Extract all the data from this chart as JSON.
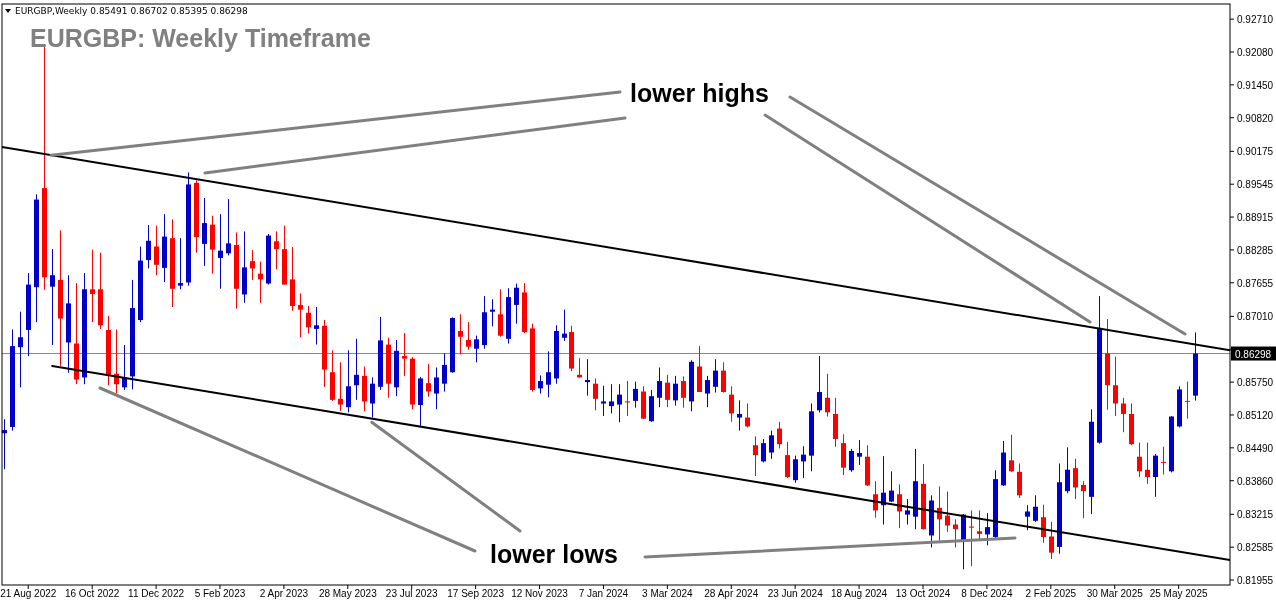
{
  "chart_data": {
    "type": "candlestick",
    "title": "EURGBP: Weekly Timeframe",
    "subtitle": "EURGBP,Weekly  0.85491 0.86702 0.85395 0.86298",
    "annotations": [
      {
        "text": "lower highs",
        "x": "2022-09-10",
        "y": 0.901
      },
      {
        "text": "lower lows",
        "x": "2023-06-18",
        "y": 0.8498
      }
    ],
    "xlim": [
      "2022-07-29",
      "2025-07-09"
    ],
    "ylim": [
      0.8186,
      0.93
    ],
    "xticks": [
      {
        "value": "2022-08-21",
        "label": "21 Aug 2022"
      },
      {
        "value": "2022-10-16",
        "label": "16 Oct 2022"
      },
      {
        "value": "2022-12-11",
        "label": "11 Dec 2022"
      },
      {
        "value": "2023-02-05",
        "label": "5 Feb 2023"
      },
      {
        "value": "2023-04-02",
        "label": "2 Apr 2023"
      },
      {
        "value": "2023-05-28",
        "label": "28 May 2023"
      },
      {
        "value": "2023-07-23",
        "label": "23 Jul 2023"
      },
      {
        "value": "2023-09-17",
        "label": "17 Sep 2023"
      },
      {
        "value": "2023-11-12",
        "label": "12 Nov 2023"
      },
      {
        "value": "2024-01-07",
        "label": "7 Jan 2024"
      },
      {
        "value": "2024-03-03",
        "label": "3 Mar 2024"
      },
      {
        "value": "2024-04-28",
        "label": "28 Apr 2024"
      },
      {
        "value": "2024-06-23",
        "label": "23 Jun 2024"
      },
      {
        "value": "2024-08-18",
        "label": "18 Aug 2024"
      },
      {
        "value": "2024-10-13",
        "label": "13 Oct 2024"
      },
      {
        "value": "2024-12-08",
        "label": "8 Dec 2024"
      },
      {
        "value": "2025-02-02",
        "label": "2 Feb 2025"
      },
      {
        "value": "2025-03-30",
        "label": "30 Mar 2025"
      },
      {
        "value": "2025-05-25",
        "label": "25 May 2025"
      }
    ],
    "yticks": [
      {
        "value": 0.9271,
        "label": "0.92710"
      },
      {
        "value": 0.9208,
        "label": "0.92080"
      },
      {
        "value": 0.9145,
        "label": "0.91450"
      },
      {
        "value": 0.9082,
        "label": "0.90820"
      },
      {
        "value": 0.90175,
        "label": "0.90175"
      },
      {
        "value": 0.89545,
        "label": "0.89545"
      },
      {
        "value": 0.88915,
        "label": "0.88915"
      },
      {
        "value": 0.88285,
        "label": "0.88285"
      },
      {
        "value": 0.87655,
        "label": "0.87655"
      },
      {
        "value": 0.8701,
        "label": "0.87010"
      },
      {
        "value": 0.8638,
        "label": null
      },
      {
        "value": 0.8575,
        "label": "0.85750"
      },
      {
        "value": 0.8512,
        "label": "0.85120"
      },
      {
        "value": 0.8449,
        "label": "0.84490"
      },
      {
        "value": 0.8386,
        "label": "0.83860"
      },
      {
        "value": 0.83215,
        "label": "0.83215"
      },
      {
        "value": 0.82585,
        "label": "0.82585"
      },
      {
        "value": 0.81955,
        "label": "0.81955"
      }
    ],
    "ref_lines": [
      {
        "axis": "y",
        "value": 0.86298,
        "label": "0.86298",
        "color": "#778899"
      }
    ],
    "series": [
      {
        "x": [
          "2022-07-31",
          "2022-08-07",
          "2022-08-14",
          "2022-08-21",
          "2022-08-28",
          "2022-09-04",
          "2022-09-11",
          "2022-09-18",
          "2022-09-25",
          "2022-10-02",
          "2022-10-09",
          "2022-10-16",
          "2022-10-23",
          "2022-10-30",
          "2022-11-06",
          "2022-11-13",
          "2022-11-20",
          "2022-11-27",
          "2022-12-04",
          "2022-12-11",
          "2022-12-18",
          "2022-12-25",
          "2023-01-01",
          "2023-01-08",
          "2023-01-15",
          "2023-01-22",
          "2023-01-29",
          "2023-02-05",
          "2023-02-12",
          "2023-02-19",
          "2023-02-26",
          "2023-03-05",
          "2023-03-12",
          "2023-03-19",
          "2023-03-26",
          "2023-04-02",
          "2023-04-09",
          "2023-04-16",
          "2023-04-23",
          "2023-04-30",
          "2023-05-07",
          "2023-05-14",
          "2023-05-21",
          "2023-05-28",
          "2023-06-04",
          "2023-06-11",
          "2023-06-18",
          "2023-06-25",
          "2023-07-02",
          "2023-07-09",
          "2023-07-16",
          "2023-07-23",
          "2023-07-30",
          "2023-08-06",
          "2023-08-13",
          "2023-08-20",
          "2023-08-27",
          "2023-09-03",
          "2023-09-10",
          "2023-09-17",
          "2023-09-24",
          "2023-10-01",
          "2023-10-08",
          "2023-10-15",
          "2023-10-22",
          "2023-10-29",
          "2023-11-05",
          "2023-11-12",
          "2023-11-19",
          "2023-11-26",
          "2023-12-03",
          "2023-12-10",
          "2023-12-17",
          "2023-12-24",
          "2023-12-31",
          "2024-01-07",
          "2024-01-14",
          "2024-01-21",
          "2024-01-28",
          "2024-02-04",
          "2024-02-11",
          "2024-02-18",
          "2024-02-25",
          "2024-03-03",
          "2024-03-10",
          "2024-03-17",
          "2024-03-24",
          "2024-03-31",
          "2024-04-07",
          "2024-04-14",
          "2024-04-21",
          "2024-04-28",
          "2024-05-05",
          "2024-05-12",
          "2024-05-19",
          "2024-05-26",
          "2024-06-02",
          "2024-06-09",
          "2024-06-16",
          "2024-06-23",
          "2024-06-30",
          "2024-07-07",
          "2024-07-14",
          "2024-07-21",
          "2024-07-28",
          "2024-08-04",
          "2024-08-11",
          "2024-08-18",
          "2024-08-25",
          "2024-09-01",
          "2024-09-08",
          "2024-09-15",
          "2024-09-22",
          "2024-09-29",
          "2024-10-06",
          "2024-10-13",
          "2024-10-20",
          "2024-10-27",
          "2024-11-03",
          "2024-11-10",
          "2024-11-17",
          "2024-11-24",
          "2024-12-01",
          "2024-12-08",
          "2024-12-15",
          "2024-12-22",
          "2024-12-29",
          "2025-01-05",
          "2025-01-12",
          "2025-01-19",
          "2025-01-26",
          "2025-02-02",
          "2025-02-09",
          "2025-02-16",
          "2025-02-23",
          "2025-03-02",
          "2025-03-09",
          "2025-03-16",
          "2025-03-23",
          "2025-03-30",
          "2025-04-06",
          "2025-04-13",
          "2025-04-20",
          "2025-04-27",
          "2025-05-04",
          "2025-05-11",
          "2025-05-18",
          "2025-05-25",
          "2025-06-01",
          "2025-06-08"
        ],
        "ohlc": [
          [
            0.8477,
            0.8504,
            0.8408,
            0.8483
          ],
          [
            0.8489,
            0.8676,
            0.8482,
            0.8644
          ],
          [
            0.8642,
            0.871,
            0.8565,
            0.8661
          ],
          [
            0.8675,
            0.8784,
            0.8625,
            0.8762
          ],
          [
            0.8757,
            0.8935,
            0.869,
            0.8925
          ],
          [
            0.8947,
            0.9221,
            0.8752,
            0.8776
          ],
          [
            0.8758,
            0.883,
            0.8646,
            0.878
          ],
          [
            0.8771,
            0.8866,
            0.8606,
            0.8697
          ],
          [
            0.8651,
            0.878,
            0.8593,
            0.8726
          ],
          [
            0.8649,
            0.8765,
            0.8571,
            0.858
          ],
          [
            0.8584,
            0.8784,
            0.8571,
            0.8753
          ],
          [
            0.8753,
            0.8829,
            0.869,
            0.8744
          ],
          [
            0.8753,
            0.8823,
            0.8677,
            0.8684
          ],
          [
            0.8675,
            0.8702,
            0.8569,
            0.8589
          ],
          [
            0.8591,
            0.8676,
            0.8553,
            0.8571
          ],
          [
            0.8565,
            0.8646,
            0.856,
            0.8584
          ],
          [
            0.8586,
            0.8771,
            0.8561,
            0.8717
          ],
          [
            0.8694,
            0.8835,
            0.869,
            0.8808
          ],
          [
            0.8809,
            0.8876,
            0.8793,
            0.8846
          ],
          [
            0.8835,
            0.8875,
            0.878,
            0.88
          ],
          [
            0.8794,
            0.8897,
            0.8767,
            0.8854
          ],
          [
            0.8851,
            0.8887,
            0.8719,
            0.8754
          ],
          [
            0.876,
            0.8851,
            0.8753,
            0.8765
          ],
          [
            0.8766,
            0.8977,
            0.876,
            0.8954
          ],
          [
            0.8957,
            0.8962,
            0.8823,
            0.8853
          ],
          [
            0.884,
            0.8928,
            0.8798,
            0.888
          ],
          [
            0.8877,
            0.8894,
            0.8783,
            0.8829
          ],
          [
            0.8813,
            0.8897,
            0.8754,
            0.8827
          ],
          [
            0.8822,
            0.8926,
            0.8818,
            0.8841
          ],
          [
            0.8838,
            0.8862,
            0.8716,
            0.8754
          ],
          [
            0.8743,
            0.8864,
            0.8727,
            0.8795
          ],
          [
            0.8807,
            0.8828,
            0.8771,
            0.8793
          ],
          [
            0.8783,
            0.8806,
            0.8727,
            0.8772
          ],
          [
            0.8764,
            0.8859,
            0.8762,
            0.8856
          ],
          [
            0.8845,
            0.8864,
            0.8791,
            0.883
          ],
          [
            0.883,
            0.8875,
            0.8762,
            0.8762
          ],
          [
            0.8772,
            0.8834,
            0.8712,
            0.8721
          ],
          [
            0.8723,
            0.8745,
            0.8661,
            0.8714
          ],
          [
            0.8708,
            0.8721,
            0.8668,
            0.868
          ],
          [
            0.8677,
            0.8719,
            0.8647,
            0.8684
          ],
          [
            0.8683,
            0.8694,
            0.8566,
            0.8599
          ],
          [
            0.8594,
            0.8636,
            0.8539,
            0.8541
          ],
          [
            0.8543,
            0.8613,
            0.852,
            0.8532
          ],
          [
            0.8527,
            0.8636,
            0.8517,
            0.8567
          ],
          [
            0.8569,
            0.8658,
            0.8541,
            0.8589
          ],
          [
            0.8587,
            0.8605,
            0.8519,
            0.8538
          ],
          [
            0.8534,
            0.8584,
            0.8507,
            0.8572
          ],
          [
            0.8566,
            0.87,
            0.856,
            0.8655
          ],
          [
            0.8647,
            0.866,
            0.8545,
            0.8572
          ],
          [
            0.8565,
            0.8656,
            0.8548,
            0.8635
          ],
          [
            0.8625,
            0.8669,
            0.8587,
            0.862
          ],
          [
            0.862,
            0.8623,
            0.8523,
            0.8532
          ],
          [
            0.8531,
            0.8585,
            0.8491,
            0.8582
          ],
          [
            0.8573,
            0.861,
            0.8547,
            0.8557
          ],
          [
            0.8553,
            0.8603,
            0.8523,
            0.8584
          ],
          [
            0.8572,
            0.863,
            0.8557,
            0.8608
          ],
          [
            0.8594,
            0.8699,
            0.8593,
            0.8698
          ],
          [
            0.8673,
            0.8705,
            0.8628,
            0.8662
          ],
          [
            0.8656,
            0.869,
            0.8637,
            0.8643
          ],
          [
            0.8639,
            0.8664,
            0.8613,
            0.8657
          ],
          [
            0.8646,
            0.874,
            0.8639,
            0.8709
          ],
          [
            0.871,
            0.8734,
            0.8682,
            0.8714
          ],
          [
            0.8705,
            0.8753,
            0.8662,
            0.8664
          ],
          [
            0.8658,
            0.8755,
            0.8649,
            0.8738
          ],
          [
            0.8723,
            0.8764,
            0.8687,
            0.8756
          ],
          [
            0.8747,
            0.8765,
            0.8669,
            0.8671
          ],
          [
            0.8678,
            0.8687,
            0.8557,
            0.856
          ],
          [
            0.8563,
            0.8588,
            0.8553,
            0.8577
          ],
          [
            0.857,
            0.8634,
            0.8546,
            0.8594
          ],
          [
            0.8582,
            0.8684,
            0.8572,
            0.8673
          ],
          [
            0.866,
            0.8714,
            0.8654,
            0.8668
          ],
          [
            0.8671,
            0.8683,
            0.8596,
            0.8601
          ],
          [
            0.8589,
            0.8621,
            0.8584,
            0.8584
          ],
          [
            0.8575,
            0.8619,
            0.8549,
            0.8579
          ],
          [
            0.8572,
            0.8582,
            0.8521,
            0.8543
          ],
          [
            0.8534,
            0.8568,
            0.851,
            0.8538
          ],
          [
            0.8529,
            0.8571,
            0.8515,
            0.8538
          ],
          [
            0.8532,
            0.8571,
            0.8498,
            0.8551
          ],
          [
            0.8538,
            0.8577,
            0.851,
            0.8536
          ],
          [
            0.8539,
            0.8576,
            0.8526,
            0.8562
          ],
          [
            0.8557,
            0.8567,
            0.8504,
            0.8505
          ],
          [
            0.85,
            0.856,
            0.8499,
            0.8548
          ],
          [
            0.8545,
            0.8603,
            0.8527,
            0.8577
          ],
          [
            0.8574,
            0.8589,
            0.8527,
            0.8541
          ],
          [
            0.854,
            0.8587,
            0.853,
            0.8572
          ],
          [
            0.8577,
            0.8586,
            0.8526,
            0.8545
          ],
          [
            0.8538,
            0.8617,
            0.8519,
            0.8614
          ],
          [
            0.8605,
            0.8644,
            0.8556,
            0.8556
          ],
          [
            0.8553,
            0.8587,
            0.8527,
            0.8579
          ],
          [
            0.8566,
            0.8619,
            0.8555,
            0.8597
          ],
          [
            0.8597,
            0.8613,
            0.8555,
            0.8556
          ],
          [
            0.8551,
            0.8567,
            0.8499,
            0.8515
          ],
          [
            0.8507,
            0.854,
            0.8482,
            0.8514
          ],
          [
            0.8507,
            0.8534,
            0.8488,
            0.849
          ],
          [
            0.8454,
            0.8471,
            0.8395,
            0.8435
          ],
          [
            0.8423,
            0.8466,
            0.8421,
            0.8458
          ],
          [
            0.844,
            0.8482,
            0.8428,
            0.8473
          ],
          [
            0.8486,
            0.8499,
            0.8448,
            0.8456
          ],
          [
            0.8435,
            0.846,
            0.8391,
            0.8393
          ],
          [
            0.8387,
            0.8434,
            0.8382,
            0.8427
          ],
          [
            0.8423,
            0.8452,
            0.8391,
            0.8436
          ],
          [
            0.8434,
            0.8534,
            0.8404,
            0.8519
          ],
          [
            0.8521,
            0.8625,
            0.8517,
            0.8556
          ],
          [
            0.8545,
            0.8591,
            0.8509,
            0.8517
          ],
          [
            0.8514,
            0.8545,
            0.8451,
            0.8466
          ],
          [
            0.8458,
            0.8475,
            0.8397,
            0.8411
          ],
          [
            0.8406,
            0.8447,
            0.8403,
            0.8443
          ],
          [
            0.8432,
            0.8464,
            0.8416,
            0.8439
          ],
          [
            0.8432,
            0.8454,
            0.8376,
            0.8377
          ],
          [
            0.836,
            0.8385,
            0.8315,
            0.8329
          ],
          [
            0.8339,
            0.8433,
            0.8302,
            0.8363
          ],
          [
            0.8346,
            0.8404,
            0.8345,
            0.8367
          ],
          [
            0.836,
            0.8379,
            0.8295,
            0.8327
          ],
          [
            0.8321,
            0.8351,
            0.8302,
            0.8329
          ],
          [
            0.8317,
            0.8447,
            0.8293,
            0.8385
          ],
          [
            0.838,
            0.8418,
            0.8293,
            0.8293
          ],
          [
            0.8281,
            0.8358,
            0.8258,
            0.8348
          ],
          [
            0.8334,
            0.8375,
            0.8271,
            0.8312
          ],
          [
            0.8319,
            0.8365,
            0.8288,
            0.83
          ],
          [
            0.8302,
            0.8312,
            0.8258,
            0.8293
          ],
          [
            0.8272,
            0.8322,
            0.8216,
            0.8321
          ],
          [
            0.8298,
            0.8329,
            0.8222,
            0.8296
          ],
          [
            0.8289,
            0.8329,
            0.8272,
            0.8284
          ],
          [
            0.8283,
            0.8324,
            0.8262,
            0.8297
          ],
          [
            0.8278,
            0.8406,
            0.8276,
            0.8389
          ],
          [
            0.8377,
            0.8462,
            0.8376,
            0.844
          ],
          [
            0.8425,
            0.8474,
            0.8403,
            0.8404
          ],
          [
            0.8403,
            0.8419,
            0.8353,
            0.8358
          ],
          [
            0.8317,
            0.8339,
            0.8291,
            0.8327
          ],
          [
            0.8309,
            0.8358,
            0.8307,
            0.8336
          ],
          [
            0.8316,
            0.834,
            0.8267,
            0.8278
          ],
          [
            0.8279,
            0.8307,
            0.8236,
            0.8248
          ],
          [
            0.8259,
            0.8419,
            0.8246,
            0.8383
          ],
          [
            0.8366,
            0.845,
            0.8362,
            0.8407
          ],
          [
            0.841,
            0.8428,
            0.8351,
            0.8373
          ],
          [
            0.8378,
            0.8385,
            0.8314,
            0.8366
          ],
          [
            0.8355,
            0.8523,
            0.8322,
            0.8499
          ],
          [
            0.8459,
            0.874,
            0.8457,
            0.8679
          ],
          [
            0.863,
            0.8696,
            0.8522,
            0.8569
          ],
          [
            0.8569,
            0.8624,
            0.851,
            0.8534
          ],
          [
            0.8534,
            0.8545,
            0.8479,
            0.8514
          ],
          [
            0.8514,
            0.8534,
            0.8454,
            0.8456
          ],
          [
            0.8432,
            0.8459,
            0.8393,
            0.8404
          ],
          [
            0.8407,
            0.8459,
            0.838,
            0.8393
          ],
          [
            0.8393,
            0.8437,
            0.8355,
            0.8434
          ],
          [
            0.8422,
            0.8451,
            0.8398,
            0.8421
          ],
          [
            0.8404,
            0.851,
            0.8402,
            0.8509
          ],
          [
            0.849,
            0.8567,
            0.8488,
            0.8561
          ],
          [
            0.8539,
            0.8576,
            0.8505,
            0.8538
          ],
          [
            0.85491,
            0.86702,
            0.85395,
            0.86298
          ]
        ]
      },
      {
        "type": "line",
        "x": [
          "2022-07-29",
          "2025-07-09"
        ],
        "values": [
          0.9026,
          0.8636
        ],
        "color": "#000000"
      },
      {
        "type": "line",
        "x": [
          "2022-09-11",
          "2025-07-09"
        ],
        "values": [
          0.8606,
          0.8234
        ],
        "color": "#000000"
      }
    ]
  }
}
